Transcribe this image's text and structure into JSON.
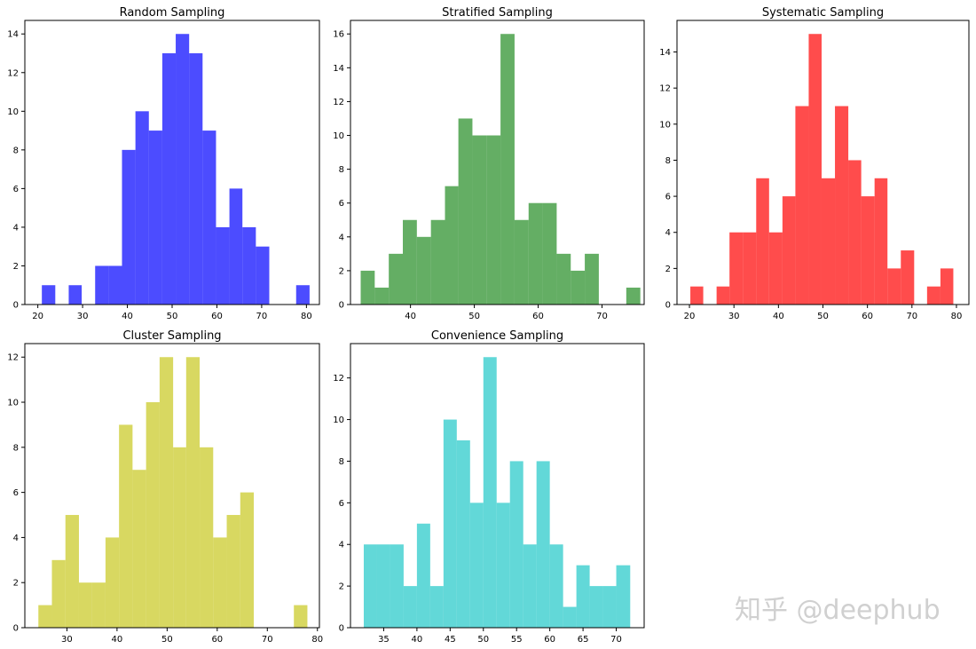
{
  "chart_data": [
    {
      "type": "histogram",
      "title": "Random Sampling",
      "color": "#0000ff",
      "xlim": [
        17.1,
        82.9
      ],
      "ylim": [
        0,
        14.7
      ],
      "xticks": [
        20,
        30,
        40,
        50,
        60,
        70,
        80
      ],
      "yticks": [
        0,
        2,
        4,
        6,
        8,
        10,
        12,
        14
      ],
      "bin_edges": [
        20.9,
        23.9,
        26.9,
        29.8,
        32.8,
        35.8,
        38.8,
        41.8,
        44.8,
        47.8,
        50.8,
        53.8,
        56.8,
        59.8,
        62.8,
        65.7,
        68.7,
        71.7,
        74.7,
        77.7,
        80.7
      ],
      "counts": [
        1,
        0,
        1,
        0,
        2,
        2,
        8,
        10,
        9,
        13,
        14,
        13,
        9,
        4,
        6,
        4,
        3,
        0,
        0,
        1
      ]
    },
    {
      "type": "histogram",
      "title": "Stratified Sampling",
      "color": "#228b22",
      "xlim": [
        30.6,
        76.6
      ],
      "ylim": [
        0,
        16.8
      ],
      "xticks": [
        40,
        50,
        60,
        70
      ],
      "yticks": [
        0,
        2,
        4,
        6,
        8,
        10,
        12,
        14,
        16
      ],
      "bin_edges": [
        32.2,
        34.4,
        36.6,
        38.8,
        41.0,
        43.2,
        45.4,
        47.5,
        49.7,
        51.9,
        54.1,
        56.3,
        58.5,
        60.7,
        62.9,
        65.1,
        67.3,
        69.5,
        71.7,
        73.8,
        76.0
      ],
      "counts": [
        2,
        1,
        3,
        5,
        4,
        5,
        7,
        11,
        10,
        10,
        16,
        5,
        6,
        6,
        3,
        2,
        3,
        0,
        0,
        1
      ]
    },
    {
      "type": "histogram",
      "title": "Systematic Sampling",
      "color": "#ff0000",
      "xlim": [
        17.2,
        82.8
      ],
      "ylim": [
        0,
        15.75
      ],
      "xticks": [
        20,
        30,
        40,
        50,
        60,
        70,
        80
      ],
      "yticks": [
        0,
        2,
        4,
        6,
        8,
        10,
        12,
        14
      ],
      "bin_edges": [
        20.2,
        23.1,
        26.1,
        29.0,
        32.0,
        35.0,
        37.9,
        40.9,
        43.8,
        46.8,
        49.7,
        52.7,
        55.7,
        58.6,
        61.6,
        64.5,
        67.5,
        70.5,
        73.4,
        76.4,
        79.3
      ],
      "counts": [
        1,
        0,
        1,
        4,
        4,
        7,
        4,
        6,
        11,
        15,
        7,
        11,
        8,
        6,
        7,
        2,
        3,
        0,
        1,
        2
      ]
    },
    {
      "type": "histogram",
      "title": "Cluster Sampling",
      "color": "#c8c81e",
      "xlim": [
        21.6,
        80.4
      ],
      "ylim": [
        0,
        12.6
      ],
      "xticks": [
        30,
        40,
        50,
        60,
        70,
        80
      ],
      "yticks": [
        0,
        2,
        4,
        6,
        8,
        10,
        12
      ],
      "bin_edges": [
        24.3,
        27.0,
        29.7,
        32.4,
        35.0,
        37.7,
        40.4,
        43.1,
        45.8,
        48.5,
        51.2,
        53.8,
        56.5,
        59.2,
        61.9,
        64.6,
        67.3,
        69.9,
        72.6,
        75.3,
        78.0
      ],
      "counts": [
        1,
        3,
        5,
        2,
        2,
        4,
        9,
        7,
        10,
        12,
        8,
        12,
        8,
        4,
        5,
        6,
        0,
        0,
        0,
        1
      ]
    },
    {
      "type": "histogram",
      "title": "Convenience Sampling",
      "color": "#20c8c8",
      "xlim": [
        30.0,
        74.2
      ],
      "ylim": [
        0,
        13.65
      ],
      "xticks": [
        35,
        40,
        45,
        50,
        55,
        60,
        65,
        70
      ],
      "yticks": [
        0,
        2,
        4,
        6,
        8,
        10,
        12
      ],
      "bin_edges": [
        32.0,
        34.0,
        36.0,
        38.0,
        40.0,
        42.0,
        44.0,
        46.0,
        48.0,
        50.0,
        52.0,
        54.0,
        56.0,
        58.0,
        60.0,
        62.0,
        64.0,
        66.0,
        68.0,
        70.0,
        72.1
      ],
      "counts": [
        4,
        4,
        4,
        2,
        5,
        2,
        10,
        9,
        6,
        13,
        6,
        8,
        4,
        8,
        4,
        1,
        3,
        2,
        2,
        3
      ]
    }
  ],
  "watermark": "知乎 @deephub"
}
